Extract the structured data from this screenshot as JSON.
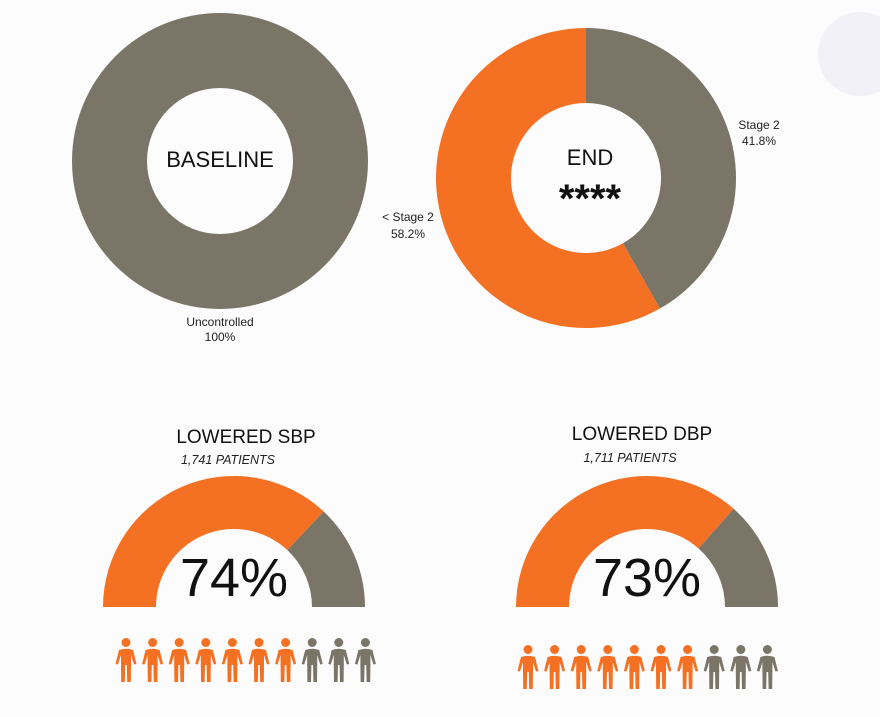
{
  "colors": {
    "orange": "#f47023",
    "gray": "#7a7567",
    "bubble": "#f2f1f7",
    "background": "#fcfcfc"
  },
  "chart_data": [
    {
      "type": "pie",
      "variant": "donut",
      "center_label": "BASELINE",
      "slices": [
        {
          "label": "Uncontrolled",
          "value": 100,
          "value_label": "100%",
          "color": "#7a7567"
        }
      ]
    },
    {
      "type": "pie",
      "variant": "donut",
      "center_label": "END",
      "significance": "****",
      "slices": [
        {
          "label": "Stage 2",
          "value": 41.8,
          "value_label": "41.8%",
          "color": "#7a7567"
        },
        {
          "label": "< Stage 2",
          "value": 58.2,
          "value_label": "58.2%",
          "color": "#f47023"
        }
      ]
    },
    {
      "type": "gauge",
      "title": "LOWERED SBP",
      "subtitle": "1,741 PATIENTS",
      "value": 74,
      "value_label": "74%",
      "people": {
        "total": 10,
        "highlighted": 7
      }
    },
    {
      "type": "gauge",
      "title": "LOWERED DBP",
      "subtitle": "1,711 PATIENTS",
      "value": 73,
      "value_label": "73%",
      "people": {
        "total": 10,
        "highlighted": 7
      }
    }
  ]
}
